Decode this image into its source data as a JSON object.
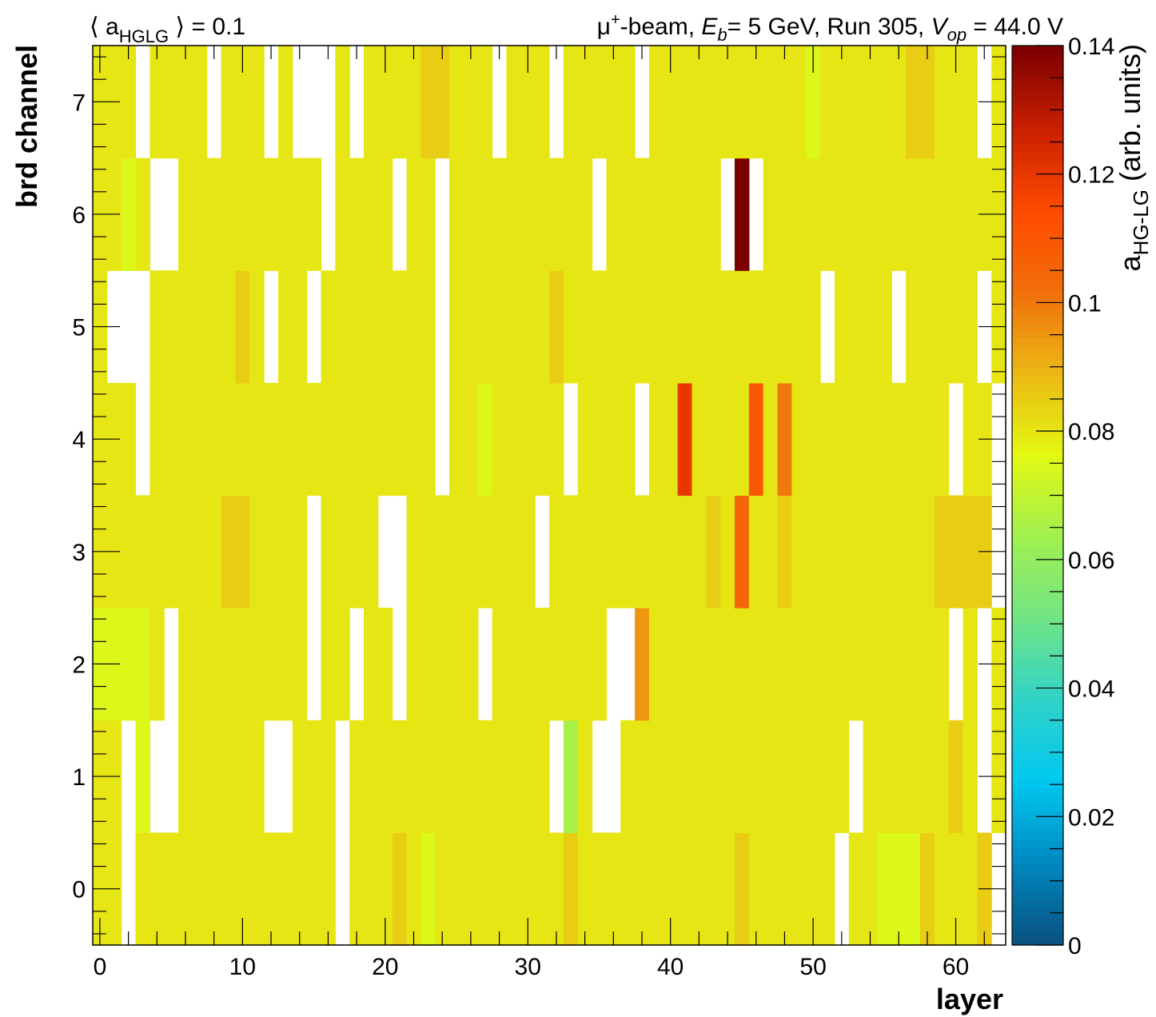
{
  "chart_data": {
    "type": "heatmap",
    "header_left_parts": [
      "⟨ a",
      "HGLG",
      " ⟩ = 0.1"
    ],
    "header_right_parts": [
      "μ",
      "+",
      "-beam, ",
      "E",
      "b",
      "= 5 GeV, Run 305, ",
      "V",
      "op",
      " = 44.0 V"
    ],
    "xlabel": "layer",
    "ylabel": "brd channel",
    "zlabel_parts": [
      "a",
      "HG-LG",
      " (arb. units)"
    ],
    "xlim": [
      -0.5,
      63.5
    ],
    "ylim": [
      -0.5,
      7.5
    ],
    "zlim": [
      0,
      0.14
    ],
    "x_ticks": [
      "0",
      "10",
      "20",
      "30",
      "40",
      "50",
      "60"
    ],
    "y_ticks": [
      "0",
      "1",
      "2",
      "3",
      "4",
      "5",
      "6",
      "7"
    ],
    "z_ticks": [
      "0",
      "0.02",
      "0.04",
      "0.06",
      "0.08",
      "0.1",
      "0.12",
      "0.14"
    ],
    "palette": [
      "#0b4f7f",
      "#0088bf",
      "#00c8f0",
      "#30d2c8",
      "#72e585",
      "#a0f050",
      "#e3f813",
      "#ecb815",
      "#f06e0a",
      "#ff4a00",
      "#c81f00",
      "#7a0000"
    ],
    "values_encoding": "One string per board channel (0-7), one character per layer (0-63); character = round(a/0.005), '.' = empty bin (0=0.000 ... 9=0.045, a=0.050 ... s=0.140).",
    "values": [
      "gg.gggggggggggggg.ggghgfggggggggghggggggggggghgggggg.ggfffhgggh.",
      "gg.f..gggggg..ggg.gggggggggggggg.dg..gggggggggggggggg.gggggghg.g",
      "ffffg.ggggggggg.gg.gg.ggggg.gggggggg..jggggggggggggggggggggg.g.g",
      "ggggggggghhgggg.gggg..ggggggggg.ggggggggggghglgghgggggggggghhhh.",
      "ggg.gggggggggggggggggggg.ggfggggg.gggg.ggoggggmgkggggggggggg.gg.",
      "g...gggggghg.gg.gggggggg.ggggggghgggggggggggggggggg.gggg.ggggg.g",
      "ggfg..gggggggggg.gggg.gg.gggggggggg.gggggggg.s.ggggggggggggggggg",
      "ggg.gggg.ggg.g...g.gggghhggg.ggg.ggggg.gggggggggggfgggggghhggg.g"
    ]
  }
}
